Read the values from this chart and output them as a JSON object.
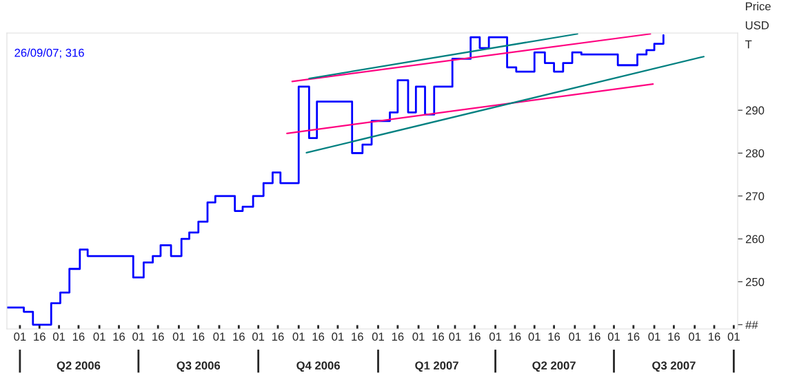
{
  "chart_data": {
    "type": "step",
    "ylabel": "Price\nUSD\nT",
    "annotations": [
      "26/09/07; 316"
    ],
    "series": [
      {
        "color": "#0000ff",
        "x": [
          "2006-03-22",
          "2006-04-04",
          "2006-04-11",
          "2006-04-25",
          "2006-05-02",
          "2006-05-09",
          "2006-05-17",
          "2006-05-23",
          "2006-06-27",
          "2006-07-05",
          "2006-07-12",
          "2006-07-18",
          "2006-07-26",
          "2006-08-03",
          "2006-08-09",
          "2006-08-16",
          "2006-08-23",
          "2006-08-29",
          "2006-09-13",
          "2006-09-19",
          "2006-09-27",
          "2006-10-05",
          "2006-10-12",
          "2006-10-18",
          "2006-11-01",
          "2006-11-09",
          "2006-11-15",
          "2006-12-12",
          "2006-12-20",
          "2006-12-27",
          "2007-01-10",
          "2007-01-16",
          "2007-01-24",
          "2007-01-30",
          "2007-02-06",
          "2007-02-13",
          "2007-02-27",
          "2007-03-13",
          "2007-03-20",
          "2007-03-27",
          "2007-04-10",
          "2007-04-17",
          "2007-05-01",
          "2007-05-09",
          "2007-05-16",
          "2007-05-23",
          "2007-05-30",
          "2007-06-06",
          "2007-07-04",
          "2007-07-19",
          "2007-07-26",
          "2007-08-01",
          "2007-08-08"
        ],
        "values": [
          244,
          243,
          240,
          245,
          247.5,
          253,
          257.5,
          256,
          251,
          254.5,
          256,
          258.5,
          256,
          260,
          261.5,
          264,
          268.5,
          270,
          266.5,
          267.5,
          270,
          273,
          275.5,
          273,
          295.5,
          283.5,
          292,
          280,
          282,
          287.5,
          289.5,
          297,
          289.5,
          295.5,
          289,
          295.5,
          302,
          307,
          304.5,
          307,
          300,
          299,
          303.5,
          301,
          299,
          301,
          303.5,
          303,
          300.5,
          303,
          304,
          305.5,
          307.5
        ]
      },
      {
        "type": "line",
        "color": "#ff0080",
        "x": [
          "2006-10-27",
          "2007-07-29"
        ],
        "values": [
          296.7,
          307.8
        ]
      },
      {
        "type": "line",
        "color": "#ff0080",
        "x": [
          "2006-10-23",
          "2007-07-31"
        ],
        "values": [
          284.6,
          296.1
        ]
      },
      {
        "type": "line",
        "color": "#008080",
        "x": [
          "2006-11-09",
          "2007-06-03"
        ],
        "values": [
          297.4,
          307.8
        ]
      },
      {
        "type": "line",
        "color": "#008080",
        "x": [
          "2006-11-07",
          "2007-09-08"
        ],
        "values": [
          280.1,
          302.5
        ]
      }
    ],
    "xlim": [
      "2006-03-22",
      "2007-10-04"
    ],
    "ylim": [
      239,
      308
    ],
    "yticks": [
      {
        "value": 240,
        "label": "##"
      },
      250,
      260,
      270,
      280,
      290
    ],
    "xticks": [
      {
        "value": "2006-04-01",
        "label": "01"
      },
      {
        "value": "2006-04-16",
        "label": "16"
      },
      {
        "value": "2006-05-01",
        "label": "01"
      },
      {
        "value": "2006-05-16",
        "label": "16"
      },
      {
        "value": "2006-06-01",
        "label": "01"
      },
      {
        "value": "2006-06-16",
        "label": "16"
      },
      {
        "value": "2006-07-01",
        "label": "01"
      },
      {
        "value": "2006-07-16",
        "label": "16"
      },
      {
        "value": "2006-08-01",
        "label": "01"
      },
      {
        "value": "2006-08-16",
        "label": "16"
      },
      {
        "value": "2006-09-01",
        "label": "01"
      },
      {
        "value": "2006-09-16",
        "label": "16"
      },
      {
        "value": "2006-10-01",
        "label": "01"
      },
      {
        "value": "2006-10-16",
        "label": "16"
      },
      {
        "value": "2006-11-01",
        "label": "01"
      },
      {
        "value": "2006-11-16",
        "label": "16"
      },
      {
        "value": "2006-12-01",
        "label": "01"
      },
      {
        "value": "2006-12-16",
        "label": "16"
      },
      {
        "value": "2007-01-01",
        "label": "01"
      },
      {
        "value": "2007-01-16",
        "label": "16"
      },
      {
        "value": "2007-02-01",
        "label": "01"
      },
      {
        "value": "2007-02-16",
        "label": "16"
      },
      {
        "value": "2007-03-01",
        "label": "01"
      },
      {
        "value": "2007-03-16",
        "label": "16"
      },
      {
        "value": "2007-04-01",
        "label": "01"
      },
      {
        "value": "2007-04-16",
        "label": "16"
      },
      {
        "value": "2007-05-01",
        "label": "01"
      },
      {
        "value": "2007-05-16",
        "label": "16"
      },
      {
        "value": "2007-06-01",
        "label": "01"
      },
      {
        "value": "2007-06-16",
        "label": "16"
      },
      {
        "value": "2007-07-01",
        "label": "01"
      },
      {
        "value": "2007-07-16",
        "label": "16"
      },
      {
        "value": "2007-08-01",
        "label": "01"
      },
      {
        "value": "2007-08-16",
        "label": "16"
      },
      {
        "value": "2007-09-01",
        "label": "01"
      },
      {
        "value": "2007-09-16",
        "label": "16"
      },
      {
        "value": "2007-10-01",
        "label": "01"
      }
    ],
    "x2lim": [
      "2006-03-22",
      "2007-10-04"
    ],
    "x2ticks": [
      {
        "value": "2006-04-01",
        "label": null
      },
      {
        "value": "2006-05-16",
        "label": "Q2 2006"
      },
      {
        "value": "2006-07-01",
        "label": null
      },
      {
        "value": "2006-08-16",
        "label": "Q3 2006"
      },
      {
        "value": "2006-10-01",
        "label": null
      },
      {
        "value": "2006-11-16",
        "label": "Q4 2006"
      },
      {
        "value": "2007-01-01",
        "label": null
      },
      {
        "value": "2007-02-15",
        "label": "Q1 2007"
      },
      {
        "value": "2007-04-01",
        "label": null
      },
      {
        "value": "2007-05-16",
        "label": "Q2 2007"
      },
      {
        "value": "2007-07-01",
        "label": null
      },
      {
        "value": "2007-08-16",
        "label": "Q3 2007"
      },
      {
        "value": "2007-10-01",
        "label": null
      }
    ],
    "grid": false,
    "legend": false
  }
}
